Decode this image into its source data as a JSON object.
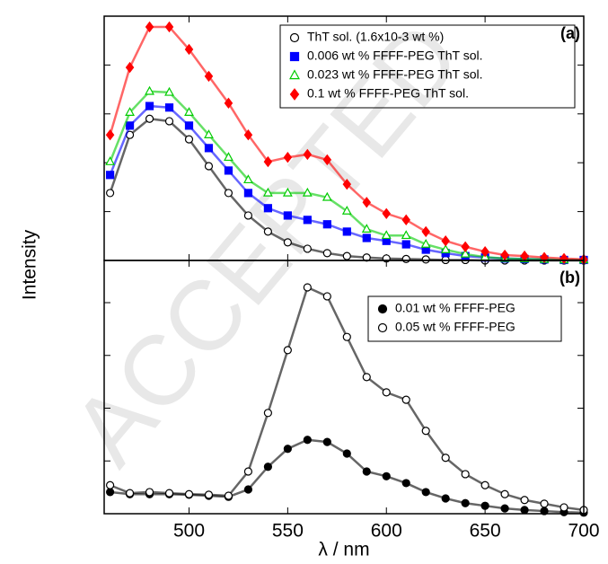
{
  "watermark": "ACCEPTED",
  "chart_data": [
    {
      "type": "scatter",
      "panel_label": "(a)",
      "ylabel": "Intensity",
      "legend": "upper right",
      "x": [
        460,
        470,
        480,
        490,
        500,
        510,
        520,
        530,
        540,
        550,
        560,
        570,
        580,
        590,
        600,
        610,
        620,
        630,
        640,
        650,
        660,
        670,
        680,
        690,
        700
      ],
      "xlim": [
        457,
        700
      ],
      "ylim": [
        0,
        5
      ],
      "yticks": [
        0,
        1,
        2,
        3,
        4,
        5
      ],
      "series": [
        {
          "name": "ThT sol. (1.6x10-3 wt %)",
          "color": "#000000",
          "marker": "circle-open",
          "values": [
            1.38,
            2.57,
            2.9,
            2.85,
            2.48,
            1.93,
            1.38,
            0.92,
            0.59,
            0.37,
            0.24,
            0.15,
            0.09,
            0.06,
            0.04,
            0.03,
            0.02,
            0.01,
            0.01,
            0,
            0,
            0,
            0,
            0,
            0
          ]
        },
        {
          "name": "0.006 wt % FFFF-PEG ThT sol.",
          "color": "#0000ff",
          "marker": "square",
          "values": [
            1.75,
            2.76,
            3.16,
            3.13,
            2.76,
            2.3,
            1.84,
            1.38,
            1.07,
            0.92,
            0.83,
            0.74,
            0.59,
            0.46,
            0.4,
            0.33,
            0.22,
            0.15,
            0.09,
            0.06,
            0.04,
            0.03,
            0.02,
            0.01,
            0.01
          ]
        },
        {
          "name": "0.023 wt % FFFF-PEG ThT sol.",
          "color": "#00cc00",
          "marker": "triangle-open",
          "values": [
            2.02,
            3.03,
            3.46,
            3.44,
            3.03,
            2.57,
            2.11,
            1.65,
            1.38,
            1.38,
            1.38,
            1.29,
            1.01,
            0.64,
            0.51,
            0.51,
            0.33,
            0.22,
            0.13,
            0.07,
            0.04,
            0.03,
            0.02,
            0.01,
            0.01
          ]
        },
        {
          "name": "0.1 wt % FFFF-PEG ThT sol.",
          "color": "#ff0000",
          "marker": "diamond",
          "values": [
            2.57,
            3.95,
            4.78,
            4.78,
            4.32,
            3.77,
            3.22,
            2.57,
            2.02,
            2.11,
            2.17,
            2.06,
            1.56,
            1.19,
            0.96,
            0.83,
            0.59,
            0.4,
            0.28,
            0.18,
            0.11,
            0.09,
            0.06,
            0.04,
            0.02
          ]
        }
      ]
    },
    {
      "type": "scatter",
      "panel_label": "(b)",
      "xlabel": "λ / nm",
      "legend": "upper right",
      "x": [
        460,
        470,
        480,
        490,
        500,
        510,
        520,
        530,
        540,
        550,
        560,
        570,
        580,
        590,
        600,
        610,
        620,
        630,
        640,
        650,
        660,
        670,
        680,
        690,
        700
      ],
      "xlim": [
        457,
        700
      ],
      "xticks": [
        500,
        550,
        600,
        650,
        700
      ],
      "ylim": [
        0,
        4.8
      ],
      "yticks": [
        0,
        1,
        2,
        3,
        4
      ],
      "series": [
        {
          "name": "0.01 wt % FFFF-PEG",
          "color": "#000000",
          "marker": "circle",
          "values": [
            0.41,
            0.37,
            0.37,
            0.37,
            0.36,
            0.34,
            0.32,
            0.46,
            0.89,
            1.23,
            1.4,
            1.36,
            1.14,
            0.8,
            0.71,
            0.58,
            0.41,
            0.29,
            0.2,
            0.15,
            0.1,
            0.07,
            0.05,
            0.03,
            0.02
          ]
        },
        {
          "name": "0.05 wt % FFFF-PEG",
          "color": "#000000",
          "marker": "circle-open",
          "values": [
            0.54,
            0.39,
            0.41,
            0.39,
            0.37,
            0.36,
            0.34,
            0.8,
            1.91,
            3.1,
            4.29,
            4.12,
            3.35,
            2.59,
            2.3,
            2.16,
            1.57,
            1.06,
            0.75,
            0.54,
            0.37,
            0.26,
            0.19,
            0.12,
            0.07
          ]
        }
      ]
    }
  ]
}
